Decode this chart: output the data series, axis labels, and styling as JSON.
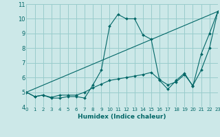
{
  "xlabel": "Humidex (Indice chaleur)",
  "xlim": [
    0,
    23
  ],
  "ylim": [
    4,
    11
  ],
  "yticks": [
    4,
    5,
    6,
    7,
    8,
    9,
    10,
    11
  ],
  "xticks": [
    0,
    1,
    2,
    3,
    4,
    5,
    6,
    7,
    8,
    9,
    10,
    11,
    12,
    13,
    14,
    15,
    16,
    17,
    18,
    19,
    20,
    21,
    22,
    23
  ],
  "bg_color": "#cce8e8",
  "grid_color": "#99cccc",
  "line_color": "#006666",
  "lines": [
    {
      "x": [
        0,
        1,
        2,
        3,
        4,
        5,
        6,
        7,
        8,
        9,
        10,
        11,
        12,
        13,
        14,
        15,
        16,
        17,
        18,
        19,
        20,
        21,
        22,
        23
      ],
      "y": [
        5.0,
        4.7,
        4.8,
        4.6,
        4.6,
        4.7,
        4.7,
        4.6,
        5.5,
        6.5,
        9.5,
        10.3,
        10.0,
        10.0,
        8.9,
        8.6,
        5.8,
        5.2,
        5.8,
        6.3,
        5.4,
        7.6,
        9.0,
        10.5
      ],
      "marker": true
    },
    {
      "x": [
        0,
        1,
        2,
        3,
        4,
        5,
        6,
        7,
        8,
        9,
        10,
        11,
        12,
        13,
        14,
        15,
        16,
        17,
        18,
        19,
        20,
        21,
        22,
        23
      ],
      "y": [
        5.0,
        4.7,
        4.8,
        4.65,
        4.8,
        4.8,
        4.8,
        5.0,
        5.3,
        5.55,
        5.8,
        5.9,
        6.0,
        6.1,
        6.2,
        6.35,
        5.85,
        5.5,
        5.7,
        6.2,
        5.45,
        6.5,
        8.0,
        10.5
      ],
      "marker": true
    },
    {
      "x": [
        0,
        23
      ],
      "y": [
        5.0,
        10.5
      ],
      "marker": false
    }
  ]
}
